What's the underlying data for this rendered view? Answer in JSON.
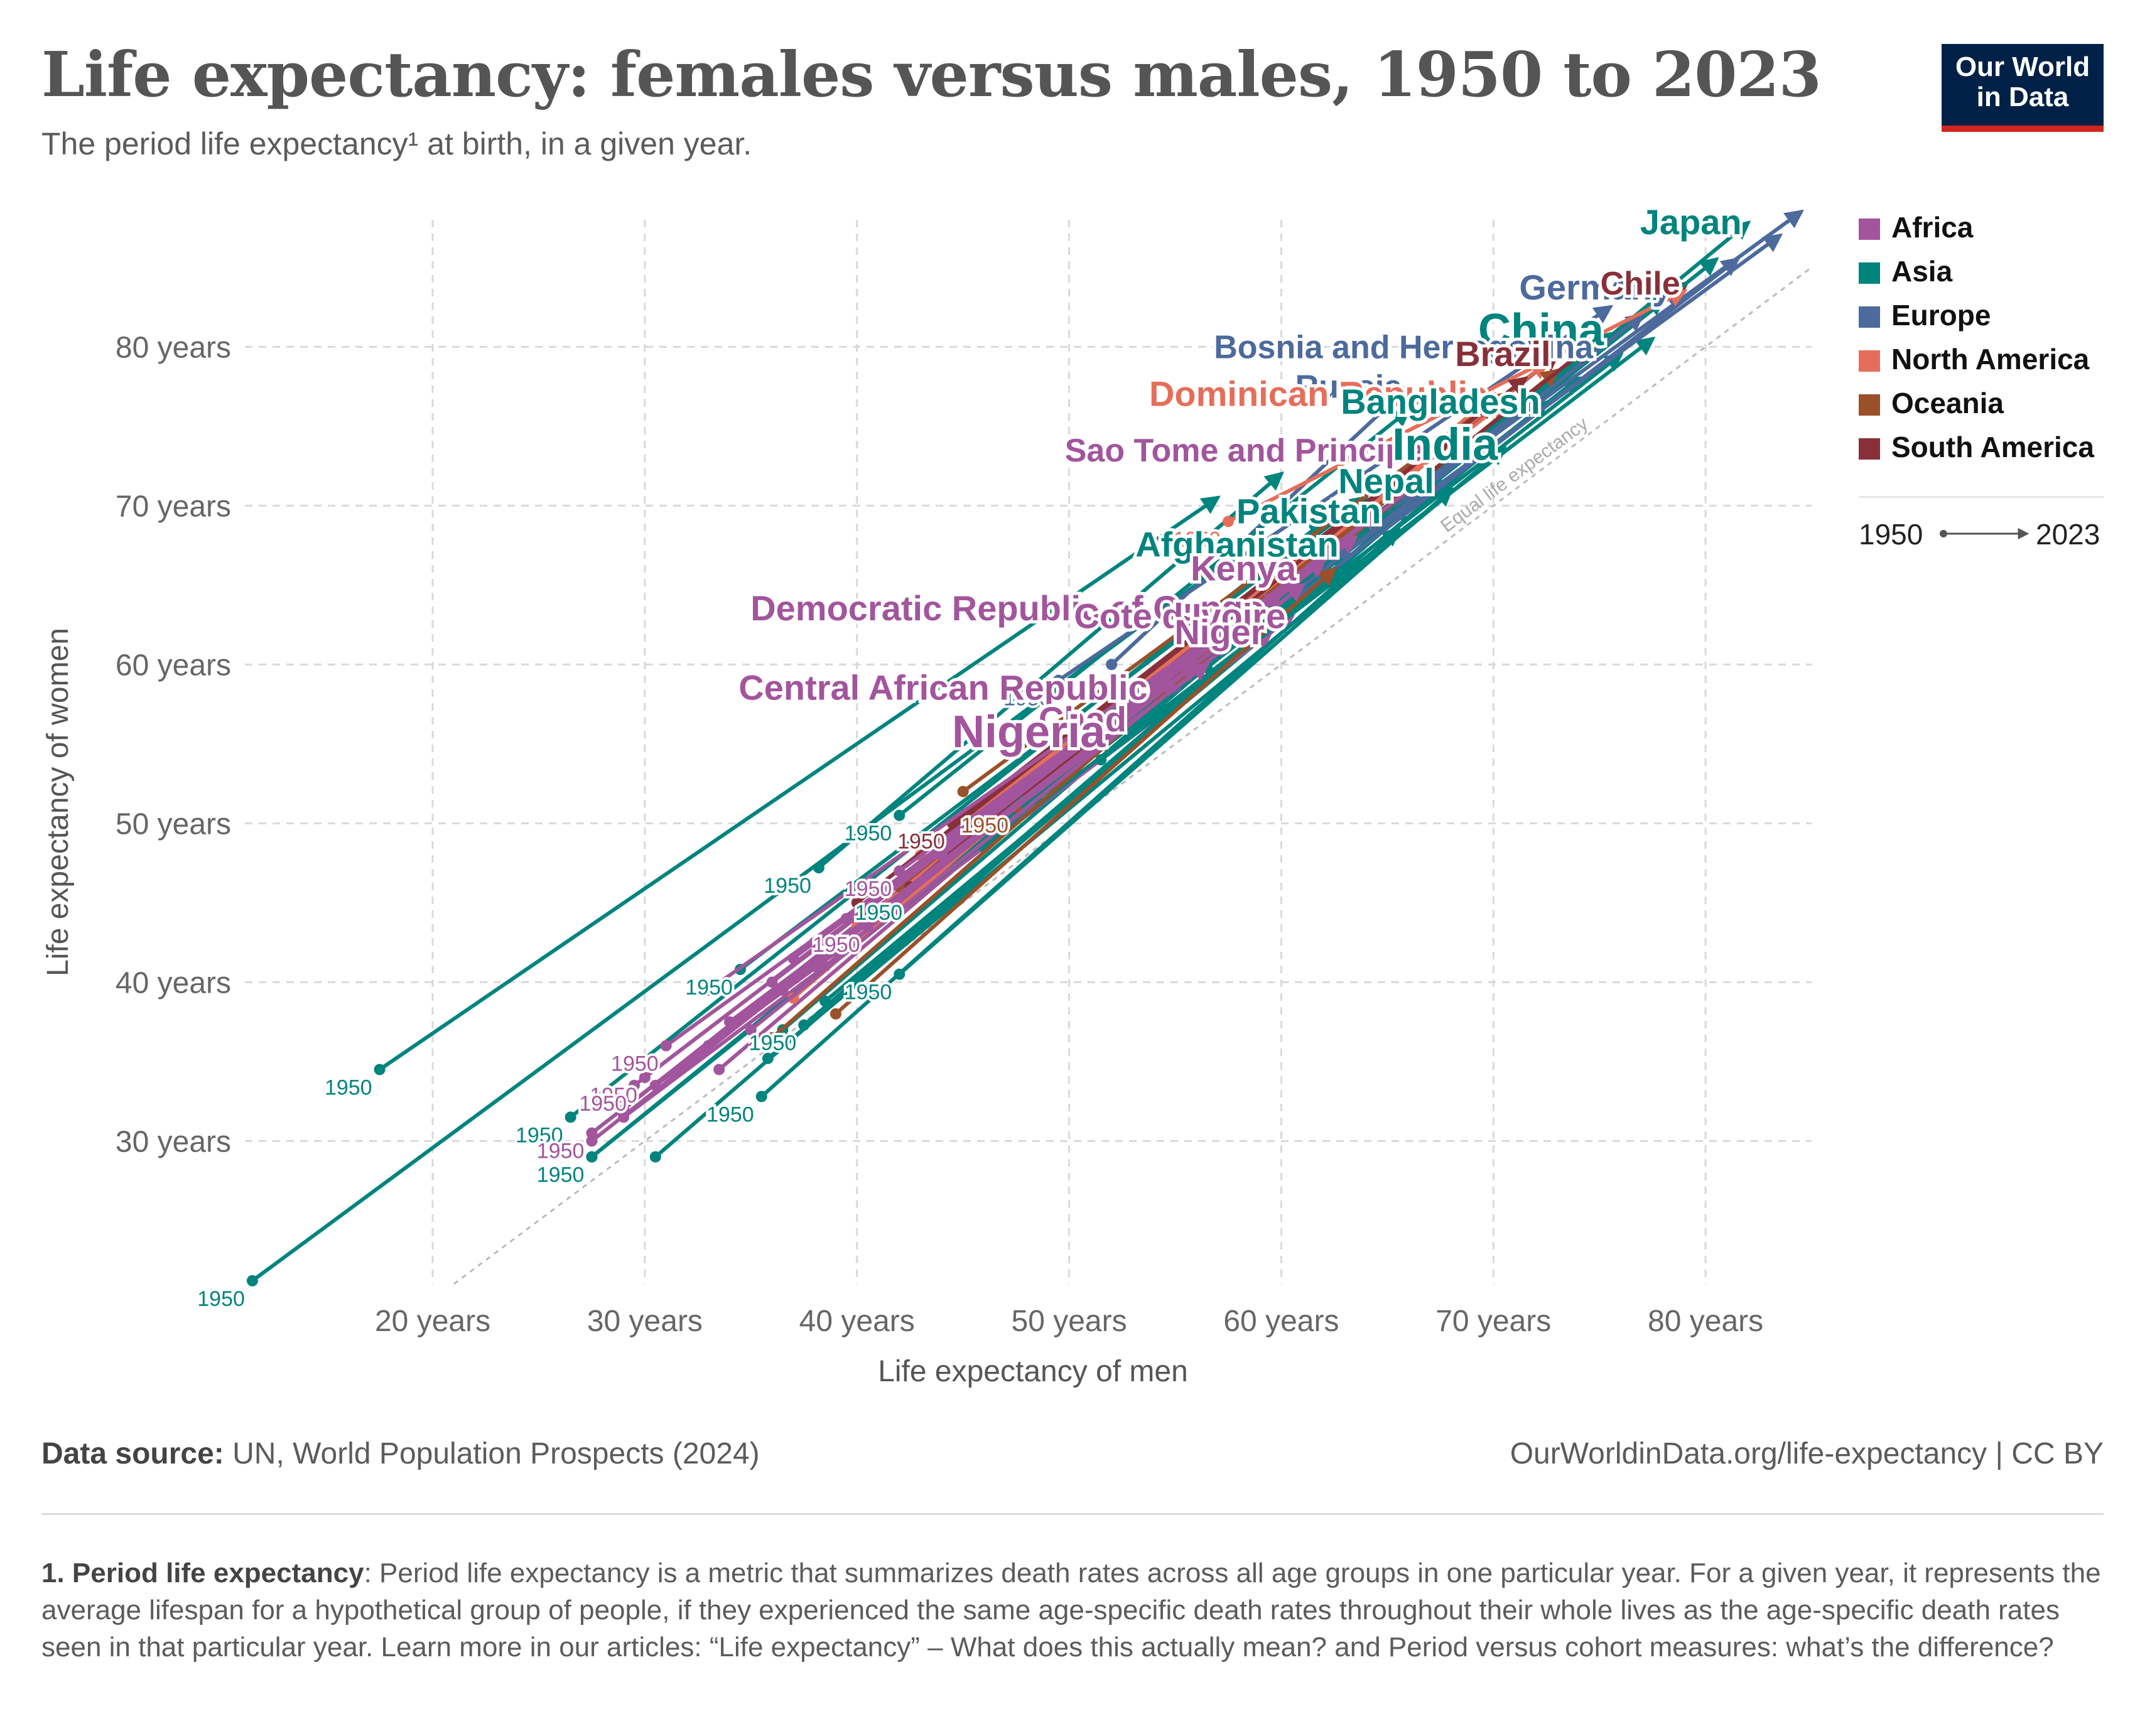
{
  "header": {
    "title": "Life expectancy: females versus males, 1950 to 2023",
    "subtitle": "The period life expectancy¹ at birth, in a given year."
  },
  "logo": {
    "line1": "Our World",
    "line2": "in Data",
    "bg_color": "#002147",
    "accent_color": "#ce261e"
  },
  "legend": {
    "items": [
      {
        "label": "Africa",
        "color": "#a2559c"
      },
      {
        "label": "Asia",
        "color": "#00847e"
      },
      {
        "label": "Europe",
        "color": "#4c6a9c"
      },
      {
        "label": "North America",
        "color": "#e56e5a"
      },
      {
        "label": "Oceania",
        "color": "#9a5129"
      },
      {
        "label": "South America",
        "color": "#883039"
      }
    ],
    "time_start": "1950",
    "time_end": "2023"
  },
  "chart_data": {
    "type": "scatter",
    "xlabel": "Life expectancy of men",
    "ylabel": "Life expectancy of women",
    "xlim": [
      11,
      85
    ],
    "ylim": [
      21,
      88
    ],
    "x_ticks": [
      {
        "value": 20,
        "label": "20 years"
      },
      {
        "value": 30,
        "label": "30 years"
      },
      {
        "value": 40,
        "label": "40 years"
      },
      {
        "value": 50,
        "label": "50 years"
      },
      {
        "value": 60,
        "label": "60 years"
      },
      {
        "value": 70,
        "label": "70 years"
      },
      {
        "value": 80,
        "label": "80 years"
      }
    ],
    "y_ticks": [
      {
        "value": 30,
        "label": "30 years"
      },
      {
        "value": 40,
        "label": "40 years"
      },
      {
        "value": 50,
        "label": "50 years"
      },
      {
        "value": 60,
        "label": "60 years"
      },
      {
        "value": 70,
        "label": "70 years"
      },
      {
        "value": 80,
        "label": "80 years"
      }
    ],
    "grid": true,
    "legend_position": "right",
    "equality_line_label": "Equal life expectancy",
    "start_label": "1950",
    "series": [
      {
        "name": "Japan",
        "region": "Asia",
        "x": [
          56.5,
          82
        ],
        "y": [
          59.8,
          87.8
        ],
        "label_size": "m"
      },
      {
        "name": "Germany",
        "region": "Europe",
        "x": [
          64.5,
          78.7
        ],
        "y": [
          69.0,
          83.7
        ],
        "label_size": "m"
      },
      {
        "name": "Chile",
        "region": "South America",
        "x": [
          44.5,
          79.1
        ],
        "y": [
          47.8,
          84.0
        ],
        "label_size": "s"
      },
      {
        "name": "China",
        "region": "Asia",
        "x": [
          40.5,
          75.5
        ],
        "y": [
          44.0,
          80.8
        ],
        "label_size": "l"
      },
      {
        "name": "Bosnia and Herzegovina",
        "region": "Europe",
        "x": [
          47.5,
          75.0
        ],
        "y": [
          52.0,
          80.0
        ],
        "label_size": "s"
      },
      {
        "name": "Russia",
        "region": "Europe",
        "x": [
          52.0,
          66.0
        ],
        "y": [
          60.0,
          77.5
        ],
        "label_size": "s"
      },
      {
        "name": "Brazil",
        "region": "South America",
        "x": [
          46.0,
          73.0
        ],
        "y": [
          50.5,
          79.5
        ],
        "label_size": "m"
      },
      {
        "name": "Dominican Republic",
        "region": "North America",
        "x": [
          44.0,
          70.0
        ],
        "y": [
          47.0,
          77.0
        ],
        "label_size": "m"
      },
      {
        "name": "Bangladesh",
        "region": "Asia",
        "x": [
          38.5,
          72.5
        ],
        "y": [
          38.8,
          76.5
        ],
        "label_size": "m"
      },
      {
        "name": "Sao Tome and Principe",
        "region": "Africa",
        "x": [
          38.0,
          67.0
        ],
        "y": [
          41.0,
          73.5
        ],
        "label_size": "s"
      },
      {
        "name": "India",
        "region": "Asia",
        "x": [
          35.8,
          70.5
        ],
        "y": [
          35.2,
          73.6
        ],
        "label_size": "l"
      },
      {
        "name": "Nepal",
        "region": "Asia",
        "x": [
          30.5,
          67.5
        ],
        "y": [
          29.0,
          71.5
        ],
        "label_size": "m"
      },
      {
        "name": "Pakistan",
        "region": "Asia",
        "x": [
          36.5,
          65.0
        ],
        "y": [
          37.0,
          69.6
        ],
        "label_size": "m"
      },
      {
        "name": "Afghanistan",
        "region": "Asia",
        "x": [
          27.5,
          63.0
        ],
        "y": [
          29.0,
          67.5
        ],
        "label_size": "m"
      },
      {
        "name": "Kenya",
        "region": "Africa",
        "x": [
          38.5,
          61.0
        ],
        "y": [
          41.0,
          66.0
        ],
        "label_size": "m"
      },
      {
        "name": "Democratic Republic of Congo",
        "region": "Africa",
        "x": [
          36.5,
          59.5
        ],
        "y": [
          39.5,
          63.5
        ],
        "label_size": "m"
      },
      {
        "name": "Cote d'Ivoire",
        "region": "Africa",
        "x": [
          29.0,
          60.5
        ],
        "y": [
          31.5,
          63.0
        ],
        "label_size": "m"
      },
      {
        "name": "Niger",
        "region": "Africa",
        "x": [
          30.5,
          59.5
        ],
        "y": [
          33.5,
          62.0
        ],
        "label_size": "m"
      },
      {
        "name": "Central African Republic",
        "region": "Africa",
        "x": [
          29.0,
          54.0
        ],
        "y": [
          32.0,
          58.5
        ],
        "label_size": "m"
      },
      {
        "name": "Chad",
        "region": "Africa",
        "x": [
          33.0,
          53.0
        ],
        "y": [
          36.0,
          56.5
        ],
        "label_size": "m"
      },
      {
        "name": "Nigeria",
        "region": "Africa",
        "x": [
          33.5,
          52.0
        ],
        "y": [
          34.5,
          55.5
        ],
        "label_size": "l"
      },
      {
        "name": "",
        "region": "Asia",
        "x": [
          11.5,
          58.0
        ],
        "y": [
          21.2,
          67.0
        ],
        "start_label": true
      },
      {
        "name": "",
        "region": "Asia",
        "x": [
          17.5,
          57.0
        ],
        "y": [
          34.5,
          70.5
        ],
        "start_label": true
      },
      {
        "name": "",
        "region": "Asia",
        "x": [
          38.2,
          60.0
        ],
        "y": [
          47.2,
          72.0
        ],
        "start_label": true
      },
      {
        "name": "",
        "region": "Asia",
        "x": [
          42.0,
          66.0
        ],
        "y": [
          50.5,
          76.0
        ],
        "start_label": true
      },
      {
        "name": "",
        "region": "Asia",
        "x": [
          26.5,
          62.0
        ],
        "y": [
          31.5,
          69.0
        ],
        "start_label": true
      },
      {
        "name": "",
        "region": "Asia",
        "x": [
          27.5,
          63.0
        ],
        "y": [
          29.0,
          67.0
        ],
        "start_label": true
      },
      {
        "name": "",
        "region": "Asia",
        "x": [
          35.5,
          65.5
        ],
        "y": [
          32.8,
          68.5
        ],
        "start_label": true
      },
      {
        "name": "",
        "region": "Asia",
        "x": [
          37.5,
          66.0
        ],
        "y": [
          37.3,
          70.0
        ],
        "start_label": true
      },
      {
        "name": "",
        "region": "Asia",
        "x": [
          42.0,
          68.0
        ],
        "y": [
          40.5,
          71.0
        ],
        "start_label": true
      },
      {
        "name": "",
        "region": "Asia",
        "x": [
          42.5,
          69.0
        ],
        "y": [
          45.5,
          73.5
        ],
        "start_label": true
      },
      {
        "name": "",
        "region": "Asia",
        "x": [
          34.5,
          64.0
        ],
        "y": [
          40.8,
          70.5
        ],
        "start_label": true
      },
      {
        "name": "",
        "region": "Asia",
        "x": [
          55.0,
          80.5
        ],
        "y": [
          58.5,
          85.5
        ]
      },
      {
        "name": "",
        "region": "Asia",
        "x": [
          50.0,
          78.0
        ],
        "y": [
          55.0,
          83.0
        ]
      },
      {
        "name": "",
        "region": "Asia",
        "x": [
          46.0,
          76.0
        ],
        "y": [
          48.5,
          79.5
        ]
      },
      {
        "name": "",
        "region": "Asia",
        "x": [
          48.5,
          74.0
        ],
        "y": [
          51.5,
          78.0
        ]
      },
      {
        "name": "",
        "region": "Asia",
        "x": [
          51.5,
          77.5
        ],
        "y": [
          54.0,
          80.5
        ]
      },
      {
        "name": "",
        "region": "Europe",
        "x": [
          66.0,
          84.5
        ],
        "y": [
          70.5,
          88.5
        ]
      },
      {
        "name": "",
        "region": "Europe",
        "x": [
          63.0,
          83.5
        ],
        "y": [
          67.0,
          87.0
        ]
      },
      {
        "name": "",
        "region": "Europe",
        "x": [
          61.0,
          81.5
        ],
        "y": [
          64.5,
          85.5
        ]
      },
      {
        "name": "",
        "region": "Europe",
        "x": [
          49.5,
          75.5
        ],
        "y": [
          59.0,
          82.5
        ],
        "start_label": true
      },
      {
        "name": "",
        "region": "Europe",
        "x": [
          55.0,
          77.0
        ],
        "y": [
          58.5,
          82.0
        ]
      },
      {
        "name": "",
        "region": "North America",
        "x": [
          57.5,
          79.0
        ],
        "y": [
          69.0,
          83.5
        ],
        "start_label": true
      },
      {
        "name": "",
        "region": "North America",
        "x": [
          47.5,
          72.5
        ],
        "y": [
          52.5,
          79.0
        ]
      },
      {
        "name": "",
        "region": "North America",
        "x": [
          43.0,
          70.5
        ],
        "y": [
          48.0,
          76.5
        ]
      },
      {
        "name": "",
        "region": "North America",
        "x": [
          40.0,
          68.5
        ],
        "y": [
          43.5,
          74.5
        ]
      },
      {
        "name": "",
        "region": "North America",
        "x": [
          37.0,
          64.0
        ],
        "y": [
          39.0,
          70.0
        ]
      },
      {
        "name": "",
        "region": "Oceania",
        "x": [
          36.0,
          65.5
        ],
        "y": [
          36.5,
          71.0
        ]
      },
      {
        "name": "",
        "region": "Oceania",
        "x": [
          42.0,
          66.0
        ],
        "y": [
          46.0,
          71.5
        ]
      },
      {
        "name": "",
        "region": "Oceania",
        "x": [
          47.5,
          73.0
        ],
        "y": [
          51.0,
          78.5
        ],
        "start_label": true
      },
      {
        "name": "",
        "region": "Oceania",
        "x": [
          45.0,
          70.5
        ],
        "y": [
          52.0,
          77.0
        ]
      },
      {
        "name": "",
        "region": "Oceania",
        "x": [
          39.0,
          62.5
        ],
        "y": [
          38.0,
          66.0
        ]
      },
      {
        "name": "",
        "region": "South America",
        "x": [
          44.5,
          71.5
        ],
        "y": [
          50.0,
          78.0
        ],
        "start_label": true
      },
      {
        "name": "",
        "region": "South America",
        "x": [
          40.0,
          70.0
        ],
        "y": [
          45.0,
          76.5
        ]
      },
      {
        "name": "",
        "region": "South America",
        "x": [
          48.0,
          74.5
        ],
        "y": [
          52.0,
          80.0
        ]
      },
      {
        "name": "",
        "region": "South America",
        "x": [
          42.5,
          68.0
        ],
        "y": [
          46.0,
          74.5
        ]
      },
      {
        "name": "",
        "region": "Africa",
        "x": [
          30.0,
          56.0
        ],
        "y": [
          34.0,
          60.5
        ],
        "start_label": true
      },
      {
        "name": "",
        "region": "Africa",
        "x": [
          31.0,
          57.5
        ],
        "y": [
          36.0,
          61.5
        ],
        "start_label": true
      },
      {
        "name": "",
        "region": "Africa",
        "x": [
          29.5,
          58.0
        ],
        "y": [
          33.5,
          62.5
        ],
        "start_label": true
      },
      {
        "name": "",
        "region": "Africa",
        "x": [
          27.5,
          55.0
        ],
        "y": [
          30.5,
          59.0
        ],
        "start_label": true
      },
      {
        "name": "",
        "region": "Africa",
        "x": [
          27.5,
          56.0
        ],
        "y": [
          30.0,
          60.0
        ]
      },
      {
        "name": "",
        "region": "Africa",
        "x": [
          33.0,
          57.0
        ],
        "y": [
          39.5,
          62.0
        ]
      },
      {
        "name": "",
        "region": "Africa",
        "x": [
          37.0,
          60.0
        ],
        "y": [
          41.5,
          64.5
        ]
      },
      {
        "name": "",
        "region": "Africa",
        "x": [
          40.5,
          62.0
        ],
        "y": [
          43.5,
          66.5
        ],
        "start_label": true
      },
      {
        "name": "",
        "region": "Africa",
        "x": [
          42.0,
          63.5
        ],
        "y": [
          47.0,
          68.0
        ],
        "start_label": true
      },
      {
        "name": "",
        "region": "Africa",
        "x": [
          39.5,
          64.5
        ],
        "y": [
          44.0,
          69.5
        ]
      },
      {
        "name": "",
        "region": "Africa",
        "x": [
          35.0,
          61.0
        ],
        "y": [
          37.0,
          65.0
        ]
      },
      {
        "name": "",
        "region": "Africa",
        "x": [
          44.0,
          66.5
        ],
        "y": [
          48.0,
          71.5
        ]
      },
      {
        "name": "",
        "region": "Africa",
        "x": [
          36.0,
          58.5
        ],
        "y": [
          40.0,
          63.0
        ]
      },
      {
        "name": "",
        "region": "Africa",
        "x": [
          38.0,
          59.0
        ],
        "y": [
          42.5,
          64.0
        ]
      },
      {
        "name": "",
        "region": "Africa",
        "x": [
          34.0,
          56.5
        ],
        "y": [
          37.5,
          60.0
        ]
      }
    ]
  },
  "footer": {
    "source_label": "Data source:",
    "source_text": "UN, World Population Prospects (2024)",
    "url": "OurWorldinData.org/life-expectancy | CC BY",
    "footnote_label": "1. Period life expectancy",
    "footnote_text": ": Period life expectancy is a metric that summarizes death rates across all age groups in one particular year. For a given year, it represents the average lifespan for a hypothetical group of people, if they experienced the same age-specific death rates throughout their whole lives as the age-specific death rates seen in that particular year. Learn more in our articles: “Life expectancy” – What does this actually mean? and Period versus cohort measures: what’s the difference?"
  }
}
